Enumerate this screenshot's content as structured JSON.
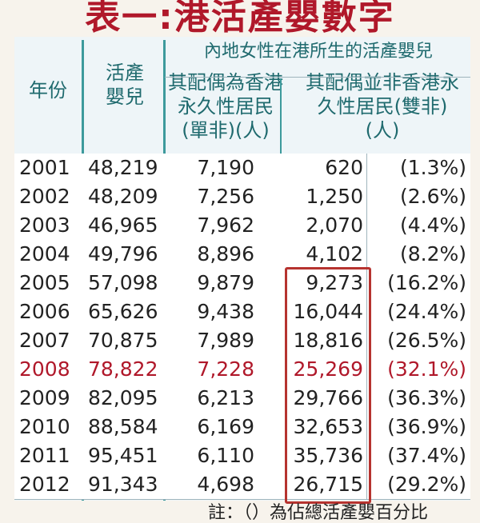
{
  "title": "表一:港活產嬰數字",
  "headers": {
    "year": "年份",
    "live_births": "活產嬰兒",
    "mainland_group": "內地女性在港所生的活產嬰兒",
    "single_non": "其配偶為香港永久性居民(單非)(人)",
    "double_non": "其配偶並非香港永久性居民(雙非)(人)"
  },
  "rows": [
    {
      "year": "2001",
      "total": "48,219",
      "single": "7,190",
      "double": "620",
      "pct": "(1.3%)"
    },
    {
      "year": "2002",
      "total": "48,209",
      "single": "7,256",
      "double": "1,250",
      "pct": "(2.6%)"
    },
    {
      "year": "2003",
      "total": "46,965",
      "single": "7,962",
      "double": "2,070",
      "pct": "(4.4%)"
    },
    {
      "year": "2004",
      "total": "49,796",
      "single": "8,896",
      "double": "4,102",
      "pct": "(8.2%)"
    },
    {
      "year": "2005",
      "total": "57,098",
      "single": "9,879",
      "double": "9,273",
      "pct": "(16.2%)"
    },
    {
      "year": "2006",
      "total": "65,626",
      "single": "9,438",
      "double": "16,044",
      "pct": "(24.4%)"
    },
    {
      "year": "2007",
      "total": "70,875",
      "single": "7,989",
      "double": "18,816",
      "pct": "(26.5%)"
    },
    {
      "year": "2008",
      "total": "78,822",
      "single": "7,228",
      "double": "25,269",
      "pct": "(32.1%)"
    },
    {
      "year": "2009",
      "total": "82,095",
      "single": "6,213",
      "double": "29,766",
      "pct": "(36.3%)"
    },
    {
      "year": "2010",
      "total": "88,584",
      "single": "6,169",
      "double": "32,653",
      "pct": "(36.9%)"
    },
    {
      "year": "2011",
      "total": "95,451",
      "single": "6,110",
      "double": "35,736",
      "pct": "(37.4%)"
    },
    {
      "year": "2012",
      "total": "91,343",
      "single": "4,698",
      "double": "26,715",
      "pct": "(29.2%)"
    }
  ],
  "highlighted_year": "2008",
  "note": "註：（）為佔總活產嬰百分比",
  "colors": {
    "title": "#b0182a",
    "header_text": "#1f6a6e",
    "highlight_box": "#b6332f"
  }
}
